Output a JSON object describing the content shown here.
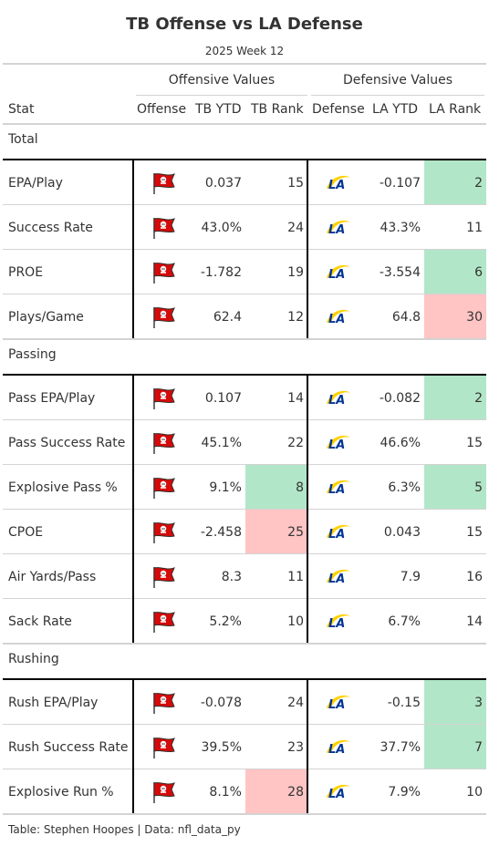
{
  "title": "TB Offense vs LA Defense",
  "subtitle": "2025 Week 12",
  "spanners": {
    "offense": "Offensive Values",
    "defense": "Defensive Values"
  },
  "columns": {
    "stat": "Stat",
    "offense": "Offense",
    "tb_ytd": "TB YTD",
    "tb_rank": "TB Rank",
    "defense": "Defense",
    "la_ytd": "LA YTD",
    "la_rank": "LA Rank"
  },
  "groups": [
    {
      "label": "Total",
      "rows": [
        {
          "stat": "EPA/Play",
          "tb_ytd": "0.037",
          "tb_rank": "15",
          "tb_hl": "",
          "la_ytd": "-0.107",
          "la_rank": "2",
          "la_hl": "good"
        },
        {
          "stat": "Success Rate",
          "tb_ytd": "43.0%",
          "tb_rank": "24",
          "tb_hl": "",
          "la_ytd": "43.3%",
          "la_rank": "11",
          "la_hl": ""
        },
        {
          "stat": "PROE",
          "tb_ytd": "-1.782",
          "tb_rank": "19",
          "tb_hl": "",
          "la_ytd": "-3.554",
          "la_rank": "6",
          "la_hl": "good"
        },
        {
          "stat": "Plays/Game",
          "tb_ytd": "62.4",
          "tb_rank": "12",
          "tb_hl": "",
          "la_ytd": "64.8",
          "la_rank": "30",
          "la_hl": "bad"
        }
      ]
    },
    {
      "label": "Passing",
      "rows": [
        {
          "stat": "Pass EPA/Play",
          "tb_ytd": "0.107",
          "tb_rank": "14",
          "tb_hl": "",
          "la_ytd": "-0.082",
          "la_rank": "2",
          "la_hl": "good"
        },
        {
          "stat": "Pass Success Rate",
          "tb_ytd": "45.1%",
          "tb_rank": "22",
          "tb_hl": "",
          "la_ytd": "46.6%",
          "la_rank": "15",
          "la_hl": ""
        },
        {
          "stat": "Explosive Pass %",
          "tb_ytd": "9.1%",
          "tb_rank": "8",
          "tb_hl": "good",
          "la_ytd": "6.3%",
          "la_rank": "5",
          "la_hl": "good"
        },
        {
          "stat": "CPOE",
          "tb_ytd": "-2.458",
          "tb_rank": "25",
          "tb_hl": "bad",
          "la_ytd": "0.043",
          "la_rank": "15",
          "la_hl": ""
        },
        {
          "stat": "Air Yards/Pass",
          "tb_ytd": "8.3",
          "tb_rank": "11",
          "tb_hl": "",
          "la_ytd": "7.9",
          "la_rank": "16",
          "la_hl": ""
        },
        {
          "stat": "Sack Rate",
          "tb_ytd": "5.2%",
          "tb_rank": "10",
          "tb_hl": "",
          "la_ytd": "6.7%",
          "la_rank": "14",
          "la_hl": ""
        }
      ]
    },
    {
      "label": "Rushing",
      "rows": [
        {
          "stat": "Rush EPA/Play",
          "tb_ytd": "-0.078",
          "tb_rank": "24",
          "tb_hl": "",
          "la_ytd": "-0.15",
          "la_rank": "3",
          "la_hl": "good"
        },
        {
          "stat": "Rush Success Rate",
          "tb_ytd": "39.5%",
          "tb_rank": "23",
          "tb_hl": "",
          "la_ytd": "37.7%",
          "la_rank": "7",
          "la_hl": "good"
        },
        {
          "stat": "Explosive Run %",
          "tb_ytd": "8.1%",
          "tb_rank": "28",
          "tb_hl": "bad",
          "la_ytd": "7.9%",
          "la_rank": "10",
          "la_hl": ""
        }
      ]
    }
  ],
  "colors": {
    "good": "#b2e6c8",
    "bad": "#ffc4c4",
    "tb_red": "#d50a0a",
    "la_blue": "#003594",
    "la_gold": "#ffd100"
  },
  "icons": {
    "offense": "buccaneers-flag-logo-icon",
    "defense": "rams-la-logo-icon"
  },
  "footer": "Table: Stephen Hoopes | Data: nfl_data_py"
}
